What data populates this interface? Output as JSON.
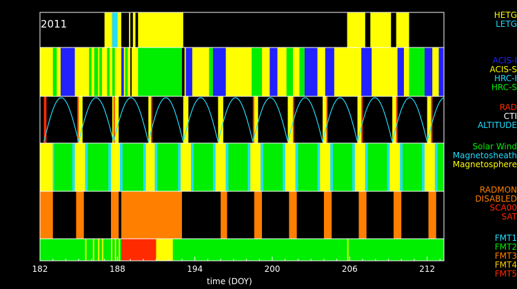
{
  "chart_data": {
    "type": "timeline",
    "year_label": "2011",
    "xlabel": "time (DOY)",
    "xlim": [
      182,
      213.3
    ],
    "xticks": [
      182,
      188,
      194,
      200,
      206,
      212
    ],
    "colors": {
      "yellow": "#ffff00",
      "cyan": "#22ddff",
      "green": "#00ee00",
      "blue": "#2222ff",
      "orange": "#ff7f00",
      "red": "#ff2a00",
      "black": "#000000",
      "orange_yellow": "#ff9900"
    },
    "panels": [
      {
        "name": "grating",
        "legend": [
          {
            "label": "HETG",
            "color": "#ffff00"
          },
          {
            "label": "LETG",
            "color": "#22ddff"
          }
        ],
        "background": "#000000",
        "segments": [
          {
            "start": 187.0,
            "end": 187.6,
            "color": "yellow"
          },
          {
            "start": 187.6,
            "end": 188.0,
            "color": "cyan"
          },
          {
            "start": 188.0,
            "end": 188.3,
            "color": "yellow"
          },
          {
            "start": 188.9,
            "end": 189.0,
            "color": "yellow"
          },
          {
            "start": 189.2,
            "end": 189.4,
            "color": "yellow"
          },
          {
            "start": 189.6,
            "end": 193.1,
            "color": "yellow"
          },
          {
            "start": 205.8,
            "end": 207.2,
            "color": "yellow"
          },
          {
            "start": 207.6,
            "end": 209.2,
            "color": "yellow"
          },
          {
            "start": 209.6,
            "end": 210.6,
            "color": "yellow"
          }
        ]
      },
      {
        "name": "instrument",
        "legend": [
          {
            "label": "ACIS-I",
            "color": "#2222ff"
          },
          {
            "label": "ACIS-S",
            "color": "#ffff00"
          },
          {
            "label": "HRC-I",
            "color": "#22ddff"
          },
          {
            "label": "HRC-S",
            "color": "#00ee00"
          }
        ],
        "background": "#ffff00",
        "segments": [
          {
            "start": 183.0,
            "end": 183.3,
            "color": "green"
          },
          {
            "start": 183.6,
            "end": 184.7,
            "color": "blue"
          },
          {
            "start": 185.8,
            "end": 186.0,
            "color": "green"
          },
          {
            "start": 186.2,
            "end": 186.5,
            "color": "green"
          },
          {
            "start": 186.6,
            "end": 186.8,
            "color": "green"
          },
          {
            "start": 187.2,
            "end": 187.4,
            "color": "green"
          },
          {
            "start": 187.6,
            "end": 187.8,
            "color": "green"
          },
          {
            "start": 188.3,
            "end": 188.5,
            "color": "blue"
          },
          {
            "start": 188.6,
            "end": 188.8,
            "color": "green"
          },
          {
            "start": 189.0,
            "end": 189.1,
            "color": "black"
          },
          {
            "start": 189.6,
            "end": 193.0,
            "color": "green"
          },
          {
            "start": 193.0,
            "end": 193.2,
            "color": "black"
          },
          {
            "start": 193.3,
            "end": 193.8,
            "color": "blue"
          },
          {
            "start": 195.1,
            "end": 195.4,
            "color": "green"
          },
          {
            "start": 195.4,
            "end": 196.4,
            "color": "blue"
          },
          {
            "start": 198.4,
            "end": 199.2,
            "color": "green"
          },
          {
            "start": 199.8,
            "end": 200.4,
            "color": "blue"
          },
          {
            "start": 201.1,
            "end": 201.6,
            "color": "green"
          },
          {
            "start": 202.1,
            "end": 202.5,
            "color": "green"
          },
          {
            "start": 202.5,
            "end": 203.5,
            "color": "blue"
          },
          {
            "start": 204.1,
            "end": 204.8,
            "color": "blue"
          },
          {
            "start": 206.9,
            "end": 207.7,
            "color": "blue"
          },
          {
            "start": 209.7,
            "end": 210.2,
            "color": "blue"
          },
          {
            "start": 210.6,
            "end": 211.8,
            "color": "green"
          },
          {
            "start": 211.8,
            "end": 212.4,
            "color": "blue"
          },
          {
            "start": 212.9,
            "end": 213.3,
            "color": "blue"
          }
        ]
      },
      {
        "name": "radiation",
        "legend": [
          {
            "label": "RAD",
            "color": "#ff2a00"
          },
          {
            "label": "CTI",
            "color": "#ffffff"
          },
          {
            "label": "ALTITUDE",
            "color": "#22ddff"
          }
        ],
        "background": "#000000",
        "segments": [
          {
            "start": 182.3,
            "end": 182.5,
            "color": "red"
          },
          {
            "start": 184.9,
            "end": 185.3,
            "color": "yellow"
          },
          {
            "start": 187.6,
            "end": 188.1,
            "color": "yellow"
          },
          {
            "start": 187.7,
            "end": 187.8,
            "color": "red"
          },
          {
            "start": 190.4,
            "end": 190.7,
            "color": "yellow"
          },
          {
            "start": 193.1,
            "end": 193.5,
            "color": "yellow"
          },
          {
            "start": 195.8,
            "end": 196.2,
            "color": "yellow"
          },
          {
            "start": 198.5,
            "end": 198.9,
            "color": "yellow"
          },
          {
            "start": 201.2,
            "end": 201.6,
            "color": "yellow"
          },
          {
            "start": 203.9,
            "end": 204.3,
            "color": "yellow"
          },
          {
            "start": 206.6,
            "end": 207.0,
            "color": "yellow"
          },
          {
            "start": 209.3,
            "end": 209.7,
            "color": "yellow"
          },
          {
            "start": 212.0,
            "end": 212.4,
            "color": "yellow"
          },
          {
            "start": 184.9,
            "end": 185.0,
            "color": "red"
          },
          {
            "start": 190.6,
            "end": 190.7,
            "color": "red"
          },
          {
            "start": 198.5,
            "end": 198.6,
            "color": "red"
          },
          {
            "start": 201.6,
            "end": 201.7,
            "color": "red"
          },
          {
            "start": 204.2,
            "end": 204.3,
            "color": "red"
          },
          {
            "start": 206.9,
            "end": 207.0,
            "color": "red"
          },
          {
            "start": 209.6,
            "end": 209.7,
            "color": "red"
          },
          {
            "start": 212.3,
            "end": 212.4,
            "color": "red"
          }
        ],
        "altitude_perigees": [
          182.3,
          185.0,
          187.7,
          190.4,
          193.1,
          195.8,
          198.5,
          201.2,
          203.9,
          206.6,
          209.3,
          212.0
        ]
      },
      {
        "name": "environment",
        "legend": [
          {
            "label": "Solar Wind",
            "color": "#00ee00"
          },
          {
            "label": "Magnetosheath",
            "color": "#22ddff"
          },
          {
            "label": "Magnetosphere",
            "color": "#ffff00"
          }
        ],
        "background": "#00ee00",
        "segments": [
          {
            "start": 182.0,
            "end": 183.0,
            "color": "yellow"
          },
          {
            "start": 183.0,
            "end": 183.1,
            "color": "cyan"
          },
          {
            "start": 184.5,
            "end": 184.7,
            "color": "cyan"
          },
          {
            "start": 184.7,
            "end": 185.5,
            "color": "yellow"
          },
          {
            "start": 185.5,
            "end": 185.7,
            "color": "cyan"
          },
          {
            "start": 187.3,
            "end": 187.5,
            "color": "cyan"
          },
          {
            "start": 187.5,
            "end": 188.2,
            "color": "yellow"
          },
          {
            "start": 188.2,
            "end": 188.4,
            "color": "cyan"
          },
          {
            "start": 190.0,
            "end": 190.2,
            "color": "cyan"
          },
          {
            "start": 190.2,
            "end": 190.9,
            "color": "yellow"
          },
          {
            "start": 190.9,
            "end": 191.1,
            "color": "cyan"
          },
          {
            "start": 192.7,
            "end": 192.9,
            "color": "cyan"
          },
          {
            "start": 192.9,
            "end": 193.7,
            "color": "yellow"
          },
          {
            "start": 193.7,
            "end": 193.9,
            "color": "cyan"
          },
          {
            "start": 195.4,
            "end": 195.6,
            "color": "cyan"
          },
          {
            "start": 195.6,
            "end": 196.4,
            "color": "yellow"
          },
          {
            "start": 196.4,
            "end": 196.6,
            "color": "cyan"
          },
          {
            "start": 198.1,
            "end": 198.3,
            "color": "cyan"
          },
          {
            "start": 198.3,
            "end": 199.1,
            "color": "yellow"
          },
          {
            "start": 199.1,
            "end": 199.3,
            "color": "cyan"
          },
          {
            "start": 200.8,
            "end": 201.0,
            "color": "cyan"
          },
          {
            "start": 201.0,
            "end": 201.8,
            "color": "yellow"
          },
          {
            "start": 201.8,
            "end": 202.0,
            "color": "cyan"
          },
          {
            "start": 203.5,
            "end": 203.7,
            "color": "cyan"
          },
          {
            "start": 203.7,
            "end": 204.5,
            "color": "yellow"
          },
          {
            "start": 204.5,
            "end": 204.7,
            "color": "cyan"
          },
          {
            "start": 206.2,
            "end": 206.4,
            "color": "cyan"
          },
          {
            "start": 206.4,
            "end": 207.2,
            "color": "yellow"
          },
          {
            "start": 207.2,
            "end": 207.4,
            "color": "cyan"
          },
          {
            "start": 208.9,
            "end": 209.1,
            "color": "cyan"
          },
          {
            "start": 209.1,
            "end": 209.9,
            "color": "yellow"
          },
          {
            "start": 209.9,
            "end": 210.1,
            "color": "cyan"
          },
          {
            "start": 211.6,
            "end": 211.8,
            "color": "cyan"
          },
          {
            "start": 211.8,
            "end": 212.6,
            "color": "yellow"
          },
          {
            "start": 212.6,
            "end": 212.8,
            "color": "cyan"
          }
        ]
      },
      {
        "name": "radmon",
        "legend": [
          {
            "label": "RADMON",
            "color": "#ff7f00"
          },
          {
            "label": "DISABLED",
            "color": "#ff7f00"
          },
          {
            "label": "SCA00",
            "color": "#ff2a00"
          },
          {
            "label": "SAT",
            "color": "#ff2a00"
          }
        ],
        "background": "#000000",
        "segments": [
          {
            "start": 182.0,
            "end": 183.0,
            "color": "orange"
          },
          {
            "start": 184.8,
            "end": 185.4,
            "color": "orange"
          },
          {
            "start": 187.5,
            "end": 188.1,
            "color": "orange"
          },
          {
            "start": 188.3,
            "end": 193.0,
            "color": "orange"
          },
          {
            "start": 196.0,
            "end": 196.5,
            "color": "orange"
          },
          {
            "start": 198.6,
            "end": 199.2,
            "color": "orange"
          },
          {
            "start": 201.3,
            "end": 201.9,
            "color": "orange"
          },
          {
            "start": 204.0,
            "end": 204.6,
            "color": "orange"
          },
          {
            "start": 206.7,
            "end": 207.3,
            "color": "orange"
          },
          {
            "start": 209.4,
            "end": 210.0,
            "color": "orange"
          },
          {
            "start": 212.1,
            "end": 212.7,
            "color": "orange"
          }
        ]
      },
      {
        "name": "format",
        "legend": [
          {
            "label": "FMT1",
            "color": "#22ddff"
          },
          {
            "label": "FMT2",
            "color": "#00ee00"
          },
          {
            "label": "FMT3",
            "color": "#ff7f00"
          },
          {
            "label": "FMT4",
            "color": "#ffcc00"
          },
          {
            "label": "FMT5",
            "color": "#ff2a00"
          }
        ],
        "background": "#00ee00",
        "segments": [
          {
            "start": 185.5,
            "end": 185.6,
            "color": "yellow"
          },
          {
            "start": 186.1,
            "end": 186.2,
            "color": "yellow"
          },
          {
            "start": 186.5,
            "end": 186.6,
            "color": "yellow"
          },
          {
            "start": 186.8,
            "end": 186.9,
            "color": "yellow"
          },
          {
            "start": 187.5,
            "end": 187.6,
            "color": "yellow"
          },
          {
            "start": 187.8,
            "end": 187.9,
            "color": "yellow"
          },
          {
            "start": 188.1,
            "end": 188.2,
            "color": "yellow"
          },
          {
            "start": 188.3,
            "end": 191.0,
            "color": "red"
          },
          {
            "start": 191.0,
            "end": 192.3,
            "color": "yellow"
          },
          {
            "start": 192.3,
            "end": 192.5,
            "color": "green"
          },
          {
            "start": 205.8,
            "end": 205.9,
            "color": "yellow"
          }
        ]
      }
    ]
  }
}
